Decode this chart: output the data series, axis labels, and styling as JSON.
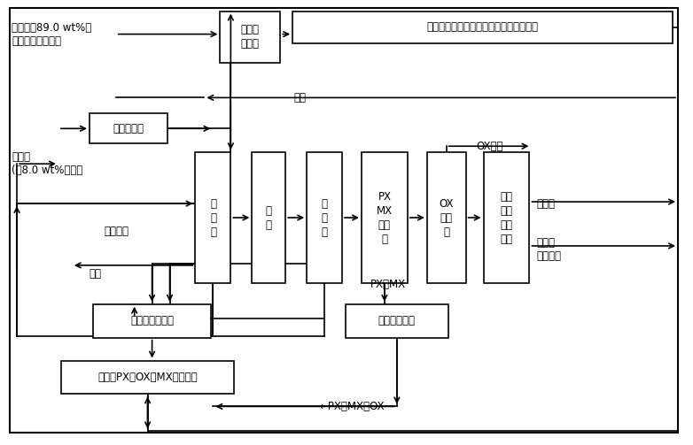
{
  "figsize": [
    7.82,
    5.03
  ],
  "dpi": 100,
  "outer_border": [
    10,
    8,
    756,
    482
  ],
  "boxes": {
    "alkylation": [
      248,
      12,
      68,
      58
    ],
    "benzene_mix": [
      330,
      12,
      430,
      36
    ],
    "acid_wash": [
      100,
      128,
      88,
      34
    ],
    "stripper": [
      220,
      172,
      40,
      148
    ],
    "benz_col": [
      284,
      172,
      38,
      148
    ],
    "tol_col": [
      346,
      172,
      40,
      148
    ],
    "pxmx_col": [
      408,
      172,
      52,
      148
    ],
    "ox_col": [
      482,
      172,
      44,
      148
    ],
    "tri_col": [
      546,
      172,
      52,
      148
    ],
    "transalkyl": [
      104,
      344,
      134,
      38
    ],
    "product": [
      68,
      408,
      196,
      38
    ],
    "isomer": [
      390,
      344,
      116,
      38
    ]
  },
  "box_labels": {
    "alkylation": "烷基化\n反应器",
    "benzene_mix": "苯＋甲苯＋混合二甲苯＋三甲苯＋重组份",
    "acid_wash": "酸洗、加氢",
    "stripper": "气\n提\n塔",
    "benz_col": "苯\n塔",
    "tol_col": "甲\n苯\n塔",
    "pxmx_col": "PX\nMX\n精馏\n塔",
    "ox_col": "OX\n精馏\n塔",
    "tri_col": "三甲\n苯和\n重组\n分塔",
    "transalkyl": "烷基转移反应器",
    "product": "甲苯＋PX＋OX＋MX＋三甲苯",
    "isomer": "异构化反应器"
  }
}
